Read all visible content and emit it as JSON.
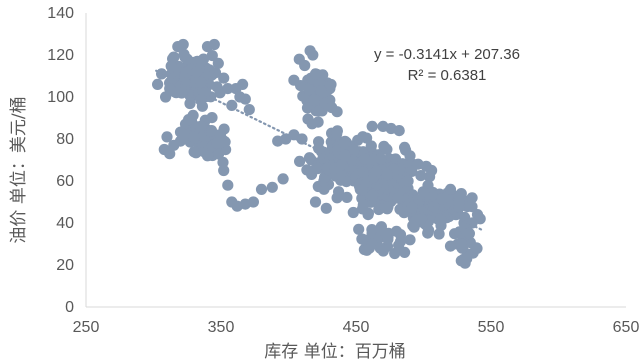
{
  "chart_data": {
    "type": "scatter",
    "title": "",
    "xlabel": "库存 单位：百万桶",
    "ylabel": "油价 单位：美元/桶",
    "xlim": [
      250,
      650
    ],
    "ylim": [
      0,
      140
    ],
    "x_ticks": [
      "250",
      "350",
      "450",
      "550",
      "650"
    ],
    "y_ticks": [
      "0",
      "20",
      "40",
      "60",
      "80",
      "100",
      "120",
      "140"
    ],
    "grid": false,
    "legend": "none",
    "marker_color": "#8497B0",
    "trendline": {
      "slope": -0.3141,
      "intercept": 207.36,
      "x_range": [
        302,
        543
      ],
      "style": "dotted",
      "color": "#8497B0",
      "equation": "y = -0.3141x + 207.36",
      "r_squared": "R² = 0.6381"
    },
    "point_clusters": [
      {
        "name": "cluster-1",
        "cx": 330,
        "cy": 108,
        "sx": 15,
        "sy": 9,
        "n": 110
      },
      {
        "name": "cluster-2",
        "cx": 340,
        "cy": 80,
        "sx": 14,
        "sy": 8,
        "n": 50
      },
      {
        "name": "cluster-3",
        "cx": 420,
        "cy": 103,
        "sx": 10,
        "sy": 12,
        "n": 50
      },
      {
        "name": "cluster-4",
        "cx": 440,
        "cy": 70,
        "sx": 18,
        "sy": 10,
        "n": 160
      },
      {
        "name": "cluster-5",
        "cx": 470,
        "cy": 60,
        "sx": 22,
        "sy": 12,
        "n": 160
      },
      {
        "name": "cluster-6",
        "cx": 510,
        "cy": 47,
        "sx": 18,
        "sy": 8,
        "n": 120
      },
      {
        "name": "cluster-7",
        "cx": 530,
        "cy": 28,
        "sx": 8,
        "sy": 6,
        "n": 15
      },
      {
        "name": "cluster-8",
        "cx": 470,
        "cy": 33,
        "sx": 14,
        "sy": 5,
        "n": 25
      }
    ],
    "points": [
      [
        303,
        106
      ],
      [
        306,
        111
      ],
      [
        309,
        100
      ],
      [
        312,
        104
      ],
      [
        315,
        119
      ],
      [
        318,
        124
      ],
      [
        322,
        125
      ],
      [
        325,
        118
      ],
      [
        328,
        113
      ],
      [
        332,
        112
      ],
      [
        335,
        107
      ],
      [
        338,
        102
      ],
      [
        340,
        124
      ],
      [
        345,
        125
      ],
      [
        348,
        116
      ],
      [
        352,
        109
      ],
      [
        355,
        104
      ],
      [
        358,
        96
      ],
      [
        361,
        104
      ],
      [
        364,
        100
      ],
      [
        366,
        106
      ],
      [
        368,
        99
      ],
      [
        371,
        94
      ],
      [
        308,
        75
      ],
      [
        310,
        81
      ],
      [
        312,
        73
      ],
      [
        315,
        77
      ],
      [
        320,
        79
      ],
      [
        325,
        82
      ],
      [
        330,
        81
      ],
      [
        335,
        86
      ],
      [
        340,
        72
      ],
      [
        343,
        84
      ],
      [
        347,
        78
      ],
      [
        352,
        65
      ],
      [
        355,
        58
      ],
      [
        358,
        50
      ],
      [
        362,
        48
      ],
      [
        368,
        49
      ],
      [
        374,
        50
      ],
      [
        380,
        56
      ],
      [
        388,
        57
      ],
      [
        396,
        61
      ],
      [
        392,
        79
      ],
      [
        398,
        80
      ],
      [
        404,
        82
      ],
      [
        410,
        80
      ],
      [
        404,
        108
      ],
      [
        408,
        118
      ],
      [
        412,
        115
      ],
      [
        416,
        122
      ],
      [
        418,
        120
      ],
      [
        420,
        111
      ],
      [
        424,
        103
      ],
      [
        427,
        97
      ],
      [
        432,
        95
      ],
      [
        436,
        93
      ],
      [
        420,
        50
      ],
      [
        428,
        47
      ],
      [
        436,
        52
      ],
      [
        448,
        45
      ],
      [
        452,
        37
      ],
      [
        456,
        32
      ],
      [
        458,
        27
      ],
      [
        462,
        30
      ],
      [
        468,
        28
      ],
      [
        472,
        35
      ],
      [
        486,
        26
      ],
      [
        490,
        32
      ],
      [
        493,
        38
      ],
      [
        498,
        42
      ],
      [
        520,
        29
      ],
      [
        528,
        22
      ],
      [
        532,
        23
      ],
      [
        528,
        30
      ],
      [
        534,
        35
      ],
      [
        462,
        86
      ],
      [
        470,
        86
      ],
      [
        476,
        85
      ],
      [
        482,
        84
      ],
      [
        486,
        76
      ],
      [
        490,
        72
      ],
      [
        496,
        68
      ],
      [
        502,
        67
      ],
      [
        506,
        65
      ],
      [
        520,
        56
      ],
      [
        528,
        54
      ],
      [
        536,
        52
      ],
      [
        540,
        44
      ],
      [
        542,
        42
      ],
      [
        536,
        40
      ],
      [
        530,
        40
      ]
    ]
  }
}
